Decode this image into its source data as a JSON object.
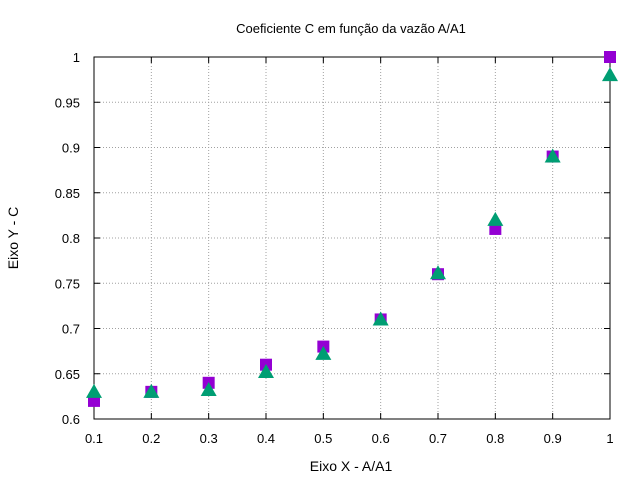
{
  "chart_data": {
    "type": "scatter",
    "title": "Coeficiente C em função da vazão A/A1",
    "xlabel": "Eixo X - A/A1",
    "ylabel": "Eixo Y - C",
    "xlim": [
      0.1,
      1
    ],
    "ylim": [
      0.6,
      1
    ],
    "x_ticks": [
      "0.1",
      "0.2",
      "0.3",
      "0.4",
      "0.5",
      "0.6",
      "0.7",
      "0.8",
      "0.9",
      "1"
    ],
    "y_ticks": [
      "0.6",
      "0.65",
      "0.7",
      "0.75",
      "0.8",
      "0.85",
      "0.9",
      "0.95",
      "1"
    ],
    "grid": true,
    "series": [
      {
        "marker": "square",
        "color": "#9400d3",
        "x": [
          0.1,
          0.2,
          0.3,
          0.4,
          0.5,
          0.6,
          0.7,
          0.8,
          0.9,
          1.0
        ],
        "y": [
          0.62,
          0.63,
          0.64,
          0.66,
          0.68,
          0.71,
          0.76,
          0.81,
          0.89,
          1.0
        ]
      },
      {
        "marker": "triangle",
        "color": "#009e73",
        "x": [
          0.1,
          0.2,
          0.3,
          0.4,
          0.5,
          0.6,
          0.7,
          0.8,
          0.9,
          1.0
        ],
        "y": [
          0.63,
          0.63,
          0.632,
          0.652,
          0.672,
          0.71,
          0.761,
          0.82,
          0.89,
          0.98
        ]
      }
    ]
  }
}
